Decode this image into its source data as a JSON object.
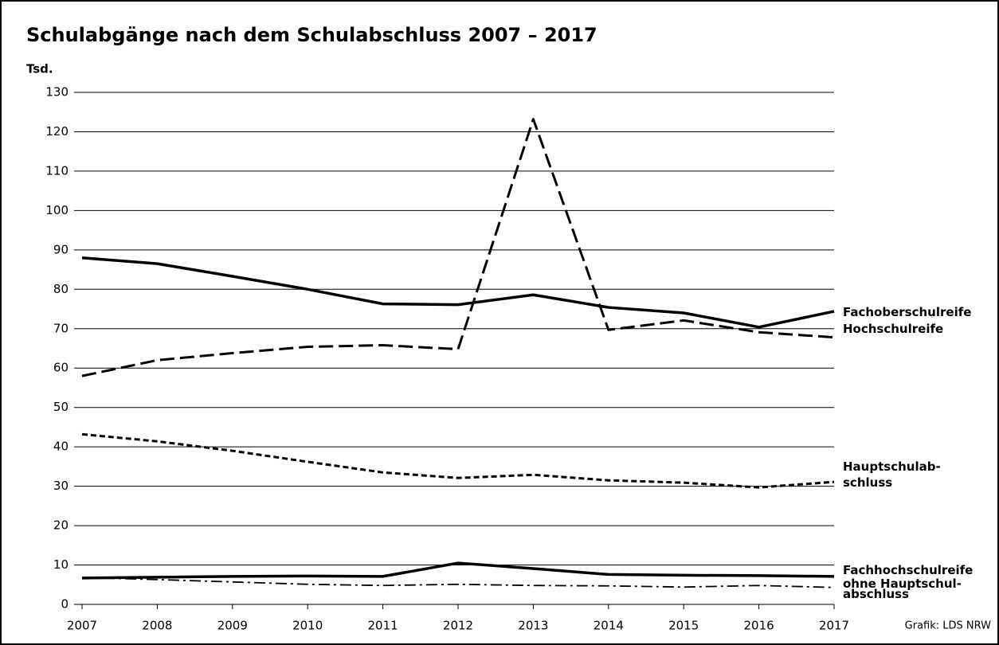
{
  "chart_data": {
    "type": "line",
    "title": "Schulabgänge nach dem Schulabschluss 2007 – 2017",
    "y_label": "Tsd.",
    "source": "Grafik: LDS NRW",
    "x": [
      2007,
      2008,
      2009,
      2010,
      2011,
      2012,
      2013,
      2014,
      2015,
      2016,
      2017
    ],
    "xlim": [
      2007,
      2017
    ],
    "xticks": [
      2007,
      2008,
      2009,
      2010,
      2011,
      2012,
      2013,
      2014,
      2015,
      2016,
      2017
    ],
    "ylim": [
      0,
      130
    ],
    "yticks": [
      0,
      10,
      20,
      30,
      40,
      50,
      60,
      70,
      80,
      90,
      100,
      110,
      120,
      130
    ],
    "grid": true,
    "series": [
      {
        "name": "Fachoberschulreife",
        "color": "#000000",
        "line_style": "solid",
        "line_width": 3.5,
        "values": [
          88,
          86.5,
          83.3,
          80,
          76.3,
          76.1,
          78.6,
          75.4,
          74,
          70.4,
          74.4
        ]
      },
      {
        "name": "Hochschulreife",
        "color": "#000000",
        "line_style": "dashed",
        "line_width": 3,
        "values": [
          58,
          62,
          63.8,
          65.4,
          65.8,
          64.8,
          123.2,
          69.7,
          72.1,
          69.1,
          67.8
        ]
      },
      {
        "name": "Hauptschulab-\nschluss",
        "color": "#000000",
        "line_style": "dotted",
        "line_width": 3,
        "values": [
          43.2,
          41.4,
          39,
          36.2,
          33.5,
          32.1,
          32.9,
          31.5,
          30.9,
          29.7,
          31.1
        ]
      },
      {
        "name": "Fachhochschulreife",
        "color": "#000000",
        "line_style": "solid",
        "line_width": 3.5,
        "values": [
          6.7,
          6.9,
          7.1,
          7.2,
          7.1,
          10.5,
          9.1,
          7.6,
          7.4,
          7.3,
          7.1
        ]
      },
      {
        "name": "ohne Hauptschul-\nabschluss",
        "color": "#000000",
        "line_style": "dashdot",
        "line_width": 1.8,
        "values": [
          6.8,
          6.3,
          5.7,
          5.1,
          4.8,
          5.1,
          4.8,
          4.7,
          4.4,
          4.8,
          4.3
        ]
      }
    ]
  }
}
